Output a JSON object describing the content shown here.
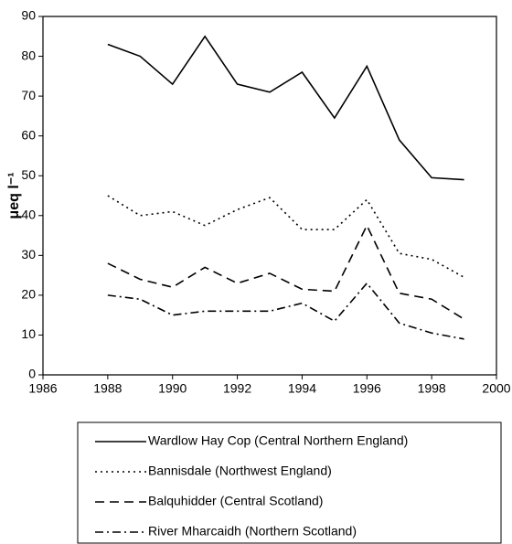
{
  "chart_data": {
    "type": "line",
    "ylabel": "μeq l⁻¹",
    "x": [
      1988,
      1989,
      1990,
      1991,
      1992,
      1993,
      1994,
      1995,
      1996,
      1997,
      1998,
      1999
    ],
    "xlim": [
      1986,
      2000
    ],
    "xticks": [
      1986,
      1988,
      1990,
      1992,
      1994,
      1996,
      1998,
      2000
    ],
    "ylim": [
      0,
      90
    ],
    "yticks": [
      0,
      10,
      20,
      30,
      40,
      50,
      60,
      70,
      80,
      90
    ],
    "grid": false,
    "legend": "bottom",
    "series": [
      {
        "name": "Wardlow Hay Cop (Central Northern England)",
        "color": "#000000",
        "dash": "solid",
        "values": [
          83,
          80,
          73,
          85,
          73,
          71,
          76,
          64.5,
          77.5,
          59,
          49.5,
          49
        ]
      },
      {
        "name": "Bannisdale (Northwest England)",
        "color": "#000000",
        "dash": "dotted",
        "values": [
          45,
          40,
          41,
          37.5,
          41.5,
          44.5,
          36.5,
          36.5,
          44,
          30.5,
          29,
          24.5
        ]
      },
      {
        "name": "Balquhidder (Central Scotland)",
        "color": "#000000",
        "dash": "dashed",
        "values": [
          28,
          24,
          22,
          27,
          23,
          25.5,
          21.5,
          21,
          37.5,
          20.5,
          19,
          14
        ]
      },
      {
        "name": "River Mharcaidh (Northern Scotland)",
        "color": "#000000",
        "dash": "dashdot",
        "values": [
          20,
          19,
          15,
          16,
          16,
          16,
          18,
          13.5,
          23,
          13,
          10.5,
          9
        ]
      }
    ]
  }
}
